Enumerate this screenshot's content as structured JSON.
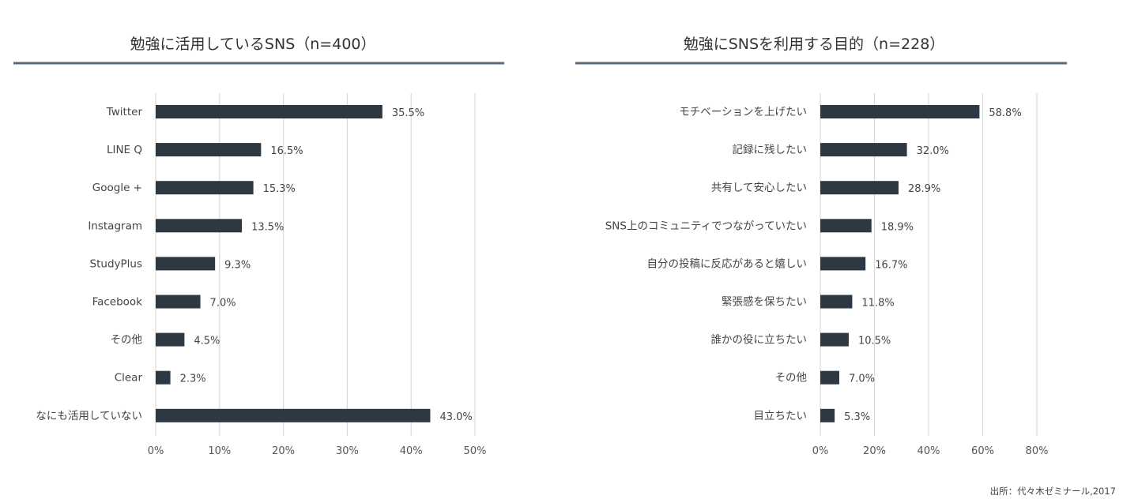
{
  "colors": {
    "bar": "#2e3843",
    "grid": "#d9d9d9",
    "rule": "#5a6a7e"
  },
  "source": "出所：代々木ゼミナール,2017",
  "chart_data": [
    {
      "type": "bar",
      "orientation": "horizontal",
      "title": "勉強に活用しているSNS（n=400）",
      "categories": [
        "Twitter",
        "LINE Q",
        "Google +",
        "Instagram",
        "StudyPlus",
        "Facebook",
        "その他",
        "Clear",
        "なにも活用していない"
      ],
      "values": [
        35.5,
        16.5,
        15.3,
        13.5,
        9.3,
        7.0,
        4.5,
        2.3,
        43.0
      ],
      "value_labels": [
        "35.5%",
        "16.5%",
        "15.3%",
        "13.5%",
        "9.3%",
        "7.0%",
        "4.5%",
        "2.3%",
        "43.0%"
      ],
      "xlim": [
        0,
        50
      ],
      "ticks": [
        0,
        10,
        20,
        30,
        40,
        50
      ],
      "tick_labels": [
        "0%",
        "10%",
        "20%",
        "30%",
        "40%",
        "50%"
      ],
      "grid": true
    },
    {
      "type": "bar",
      "orientation": "horizontal",
      "title": "勉強にSNSを利用する目的（n=228）",
      "categories": [
        "モチベーションを上げたい",
        "記録に残したい",
        "共有して安心したい",
        "SNS上のコミュニティでつながっていたい",
        "自分の投稿に反応があると嬉しい",
        "緊張感を保ちたい",
        "誰かの役に立ちたい",
        "その他",
        "目立ちたい"
      ],
      "values": [
        58.8,
        32.0,
        28.9,
        18.9,
        16.7,
        11.8,
        10.5,
        7.0,
        5.3
      ],
      "value_labels": [
        "58.8%",
        "32.0%",
        "28.9%",
        "18.9%",
        "16.7%",
        "11.8%",
        "10.5%",
        "7.0%",
        "5.3%"
      ],
      "xlim": [
        0,
        80
      ],
      "ticks": [
        0,
        20,
        40,
        60,
        80
      ],
      "tick_labels": [
        "0%",
        "20%",
        "40%",
        "60%",
        "80%"
      ],
      "grid": true
    }
  ]
}
